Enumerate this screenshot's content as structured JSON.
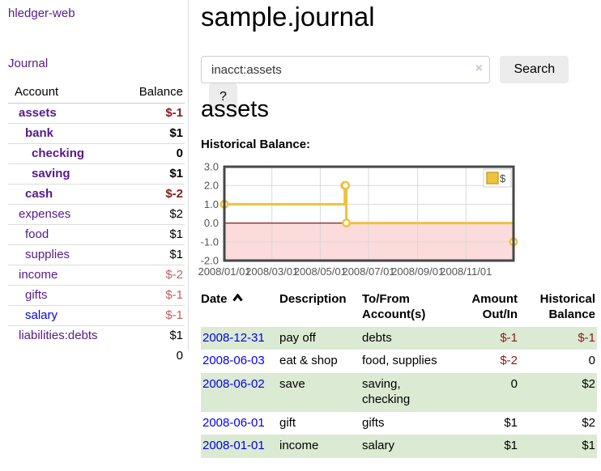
{
  "brand": "hledger-web",
  "nav": {
    "journal": "Journal"
  },
  "sidebar": {
    "headers": {
      "account": "Account",
      "balance": "Balance"
    },
    "accounts": [
      {
        "name": "assets",
        "balance": "$-1",
        "level": 1,
        "bold": true,
        "balance_tone": "neg-strong",
        "link_tone": "purple"
      },
      {
        "name": "bank",
        "balance": "$1",
        "level": 2,
        "bold": true,
        "balance_tone": "",
        "link_tone": "purple"
      },
      {
        "name": "checking",
        "balance": "0",
        "level": 3,
        "bold": true,
        "balance_tone": "",
        "link_tone": "purple"
      },
      {
        "name": "saving",
        "balance": "$1",
        "level": 3,
        "bold": true,
        "balance_tone": "",
        "link_tone": "purple"
      },
      {
        "name": "cash",
        "balance": "$-2",
        "level": 2,
        "bold": true,
        "balance_tone": "neg-strong",
        "link_tone": "purple"
      },
      {
        "name": "expenses",
        "balance": "$2",
        "level": 1,
        "bold": false,
        "balance_tone": "",
        "link_tone": "purple"
      },
      {
        "name": "food",
        "balance": "$1",
        "level": 2,
        "bold": false,
        "balance_tone": "",
        "link_tone": "purple"
      },
      {
        "name": "supplies",
        "balance": "$1",
        "level": 2,
        "bold": false,
        "balance_tone": "",
        "link_tone": "purple"
      },
      {
        "name": "income",
        "balance": "$-2",
        "level": 1,
        "bold": false,
        "balance_tone": "neg-soft",
        "link_tone": "purple"
      },
      {
        "name": "gifts",
        "balance": "$-1",
        "level": 2,
        "bold": false,
        "balance_tone": "neg-soft",
        "link_tone": "purple"
      },
      {
        "name": "salary",
        "balance": "$-1",
        "level": 2,
        "bold": false,
        "balance_tone": "neg-soft",
        "link_tone": "blue"
      },
      {
        "name": "liabilities:debts",
        "balance": "$1",
        "level": 1,
        "bold": false,
        "balance_tone": "",
        "link_tone": "purple"
      }
    ],
    "total": "0"
  },
  "page": {
    "title": "sample.journal"
  },
  "search": {
    "value": "inacct:assets",
    "clear": "×",
    "submit": "Search",
    "help": "?"
  },
  "account": {
    "heading": "assets",
    "section_label": "Historical Balance:"
  },
  "chart_data": {
    "type": "line",
    "step": true,
    "title": "Historical Balance",
    "series": [
      {
        "name": "$",
        "color": "#edc240",
        "points": [
          {
            "date": "2008-01-01",
            "day": 0,
            "value": 1
          },
          {
            "date": "2008-06-01",
            "day": 152,
            "value": 2
          },
          {
            "date": "2008-06-02",
            "day": 153,
            "value": 2
          },
          {
            "date": "2008-06-03",
            "day": 154,
            "value": 0
          },
          {
            "date": "2008-12-31",
            "day": 365,
            "value": -1
          }
        ]
      }
    ],
    "x_ticks": [
      {
        "label": "2008/01/01",
        "day": 0
      },
      {
        "label": "2008/03/01",
        "day": 60
      },
      {
        "label": "2008/05/01",
        "day": 121
      },
      {
        "label": "2008/07/01",
        "day": 182
      },
      {
        "label": "2008/09/01",
        "day": 244
      },
      {
        "label": "2008/11/01",
        "day": 305
      }
    ],
    "y_ticks": [
      {
        "label": "3.0",
        "value": 3
      },
      {
        "label": "2.0",
        "value": 2
      },
      {
        "label": "1.0",
        "value": 1
      },
      {
        "label": "0.0",
        "value": 0
      },
      {
        "label": "-1.0",
        "value": -1
      },
      {
        "label": "-2.0",
        "value": -2
      }
    ],
    "ylim": [
      -2,
      3
    ],
    "x_range_days": [
      0,
      365
    ],
    "legend": {
      "label": "$",
      "position": "top-right"
    },
    "grid": true,
    "colors": {
      "line": "#edc240",
      "marker_fill": "#ffffff",
      "negative_fill": "#fbdbdb",
      "zero_line": "#8b1a1a",
      "gridline": "#d9d9d9",
      "border": "#474747",
      "tick_text": "#545454",
      "legend_border": "#cfcfcf",
      "legend_square_border": "#c9a52f"
    }
  },
  "register": {
    "headers": {
      "date": "Date",
      "description": "Description",
      "accounts": "To/From Account(s)",
      "amount": "Amount Out/In",
      "balance": "Historical Balance"
    },
    "rows": [
      {
        "date": "2008-12-31",
        "description": "pay off",
        "accounts": "debts",
        "amount": "$-1",
        "amount_neg": true,
        "balance": "$-1",
        "balance_neg": true,
        "highlight": true
      },
      {
        "date": "2008-06-03",
        "description": "eat & shop",
        "accounts": "food, supplies",
        "amount": "$-2",
        "amount_neg": true,
        "balance": "0",
        "balance_neg": false,
        "highlight": false
      },
      {
        "date": "2008-06-02",
        "description": "save",
        "accounts": "saving, checking",
        "amount": "0",
        "amount_neg": false,
        "balance": "$2",
        "balance_neg": false,
        "highlight": true
      },
      {
        "date": "2008-06-01",
        "description": "gift",
        "accounts": "gifts",
        "amount": "$1",
        "amount_neg": false,
        "balance": "$2",
        "balance_neg": false,
        "highlight": false
      },
      {
        "date": "2008-01-01",
        "description": "income",
        "accounts": "salary",
        "amount": "$1",
        "amount_neg": false,
        "balance": "$1",
        "balance_neg": false,
        "highlight": true
      }
    ]
  }
}
